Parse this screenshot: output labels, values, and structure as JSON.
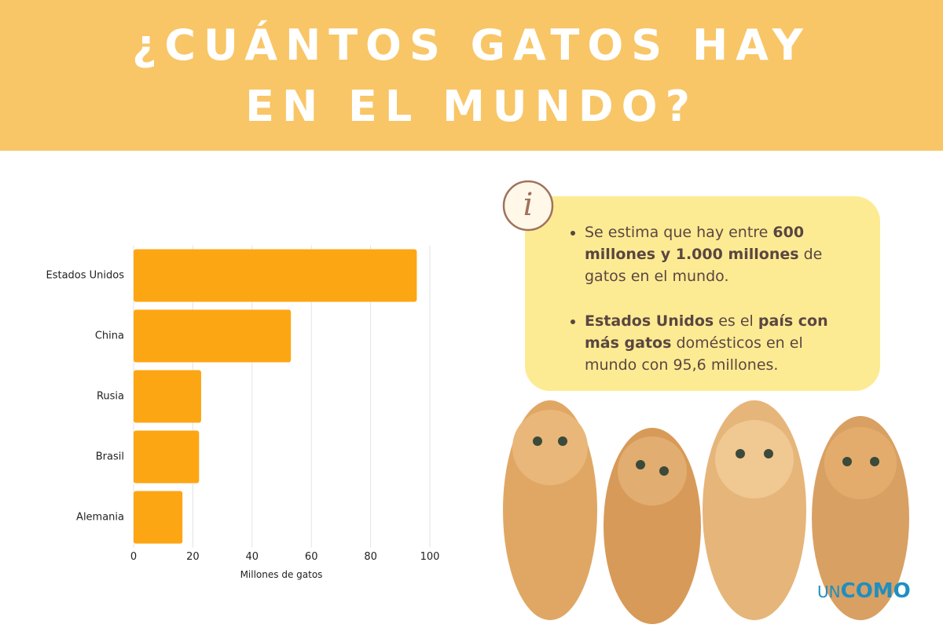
{
  "header": {
    "title": [
      "¿CUÁNTOS GATOS HAY",
      "EN EL MUNDO?"
    ]
  },
  "chart_data": {
    "type": "bar",
    "orientation": "horizontal",
    "categories": [
      "Estados Unidos",
      "China",
      "Rusia",
      "Brasil",
      "Alemania"
    ],
    "values": [
      95.6,
      53.1,
      22.8,
      22.1,
      16.5
    ],
    "color": "#fda614",
    "xlim": [
      0,
      100
    ],
    "xticks": [
      0,
      20,
      40,
      60,
      80,
      100
    ],
    "grid": true,
    "x_label": "Millones de gatos"
  },
  "info": {
    "bullets": [
      [
        {
          "text": "Se estima que hay entre "
        },
        {
          "text": "600 millones y 1.000 millones",
          "bold": true
        },
        {
          "text": " de gatos en el mundo."
        }
      ],
      [
        {
          "text": "Estados Unidos",
          "bold": true
        },
        {
          "text": " es el "
        },
        {
          "text": "país con más gatos",
          "bold": true
        },
        {
          "text": " domésticos en el mundo con 95,6 millones."
        }
      ]
    ]
  },
  "logo": [
    "UN",
    "COMO"
  ]
}
